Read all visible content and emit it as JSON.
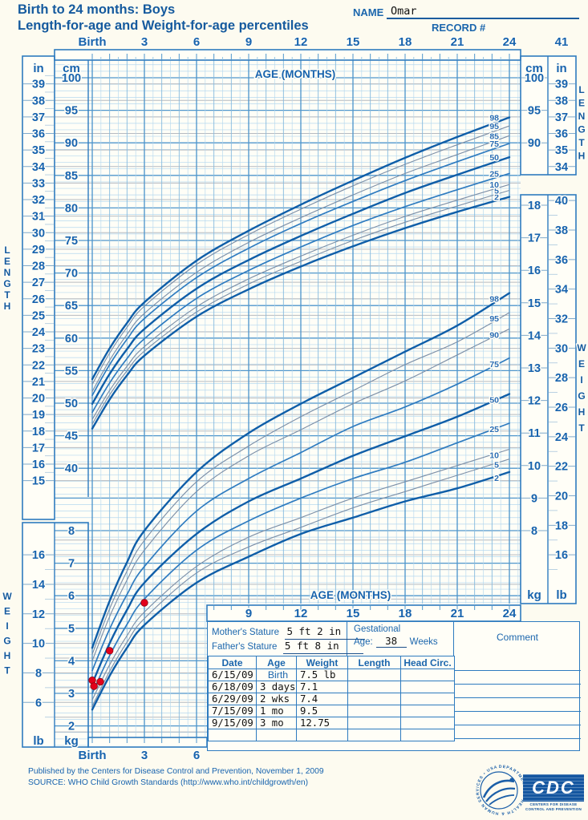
{
  "header": {
    "title_line1": "Birth to 24 months: Boys",
    "title_line2": "Length-for-age and Weight-for-age percentiles",
    "name_label": "NAME",
    "name_value": "Omar",
    "record_label": "RECORD #"
  },
  "side_labels": {
    "length": "LENGTH",
    "weight": "WEIGHT"
  },
  "units": {
    "inches": "in",
    "cm": "cm",
    "lb": "lb",
    "kg": "kg"
  },
  "colors": {
    "page_bg": "#fdfbf0",
    "plot_bg": "#fffef7",
    "grid_minor": "#b5d8ef",
    "grid_month": "#85bade",
    "grid_medium": "#4f96cc",
    "grid_gray": "#b6bac0",
    "box_border": "#2e7bbf",
    "label_blue": "#1763ae",
    "curve_thick": "#0f5ea8",
    "curve_medium": "#2f7cc0",
    "curve_thin": "#7d90a8",
    "pctl_label": "#2a6db5",
    "point_red": "#e3001b",
    "hand_black": "#111111"
  },
  "table": {
    "mothers_stature_label": "Mother's Stature",
    "mothers_stature_value": "5 ft 2 in",
    "fathers_stature_label": "Father's Stature",
    "fathers_stature_value": "5 ft 8 in",
    "gestational_label": "Gestational",
    "age_label": "Age:",
    "gestational_value": "38",
    "weeks_label": "Weeks",
    "comment_label": "Comment",
    "columns": [
      "Date",
      "Age",
      "Weight",
      "Length",
      "Head Circ."
    ],
    "rows": [
      {
        "date": "6/15/09",
        "age": "Birth",
        "weight": "7.5 lb",
        "length": "",
        "head_circ": ""
      },
      {
        "date": "6/18/09",
        "age": "3 days",
        "weight": "7.1",
        "length": "",
        "head_circ": ""
      },
      {
        "date": "6/29/09",
        "age": "2 wks",
        "weight": "7.4",
        "length": "",
        "head_circ": ""
      },
      {
        "date": "7/15/09",
        "age": "1 mo",
        "weight": "9.5",
        "length": "",
        "head_circ": ""
      },
      {
        "date": "9/15/09",
        "age": "3 mo",
        "weight": "12.75",
        "length": "",
        "head_circ": ""
      },
      {
        "date": "",
        "age": "",
        "weight": "",
        "length": "",
        "head_circ": ""
      }
    ]
  },
  "footer": {
    "line1": "Published by the Centers for Disease Control and Prevention, November 1, 2009",
    "line2": "SOURCE:  WHO Child Growth Standards (http://www.who.int/childgrowth/en)",
    "hhs_ring_text": "DEPARTMENT OF HEALTH & HUMAN SERVICES • USA",
    "cdc_text": "CDC",
    "cdc_caption1": "CENTERS FOR DISEASE",
    "cdc_caption2": "CONTROL AND PREVENTION"
  },
  "chart_data": {
    "type": "line",
    "title": "Length-for-age and Weight-for-age percentiles, boys, birth to 24 months",
    "age_axis_label": "AGE (MONTHS)",
    "x_months": [
      0,
      3,
      6,
      9,
      12,
      15,
      18,
      21,
      24
    ],
    "top_axis_labels": [
      "Birth",
      "3",
      "6",
      "9",
      "12",
      "15",
      "18",
      "21",
      "24"
    ],
    "top_axis_extra_label": "41",
    "bottom_axis_months": [
      9,
      12,
      15,
      18,
      21,
      24
    ],
    "bottom_axis_labels": [
      "9",
      "12",
      "15",
      "18",
      "21",
      "24"
    ],
    "bottom_left_axis_months": [
      0,
      3,
      6
    ],
    "bottom_left_axis_labels": [
      "Birth",
      "3",
      "6"
    ],
    "grid": true,
    "ylim_length_cm": [
      40,
      100
    ],
    "ylim_weight_kg": [
      2,
      18
    ],
    "length_for_age": {
      "unit": "cm",
      "left_cm_ticks": [
        100,
        95,
        90,
        85,
        80,
        75,
        70,
        65,
        60,
        55,
        50,
        45,
        40
      ],
      "left_in_ticks": [
        39,
        38,
        37,
        36,
        35,
        34,
        33,
        32,
        31,
        30,
        29,
        28,
        27,
        26,
        25,
        24,
        23,
        22,
        21,
        20,
        19,
        18,
        17,
        16,
        15
      ],
      "right_cm_ticks": [
        100,
        95,
        90
      ],
      "right_in_ticks": [
        39,
        38,
        37,
        36,
        35,
        34
      ],
      "series": [
        {
          "percentile": "2",
          "values": [
            46.1,
            57.3,
            63.3,
            67.5,
            71.0,
            74.1,
            76.9,
            79.4,
            81.7
          ]
        },
        {
          "percentile": "5",
          "values": [
            46.8,
            58.0,
            64.0,
            68.3,
            71.8,
            75.0,
            77.8,
            80.3,
            82.7
          ]
        },
        {
          "percentile": "10",
          "values": [
            47.5,
            58.7,
            64.8,
            69.1,
            72.6,
            75.8,
            78.7,
            81.2,
            83.6
          ]
        },
        {
          "percentile": "25",
          "values": [
            48.6,
            59.9,
            66.1,
            70.4,
            74.0,
            77.3,
            80.2,
            82.8,
            85.3
          ]
        },
        {
          "percentile": "50",
          "values": [
            49.9,
            61.4,
            67.6,
            72.0,
            75.7,
            79.1,
            82.3,
            85.1,
            87.8
          ]
        },
        {
          "percentile": "75",
          "values": [
            51.2,
            63.0,
            69.3,
            73.8,
            77.6,
            81.0,
            84.2,
            87.1,
            89.9
          ]
        },
        {
          "percentile": "85",
          "values": [
            51.8,
            63.8,
            70.1,
            74.7,
            78.5,
            82.0,
            85.3,
            88.2,
            91.1
          ]
        },
        {
          "percentile": "95",
          "values": [
            52.9,
            64.9,
            71.3,
            75.9,
            79.8,
            83.4,
            86.7,
            89.7,
            92.6
          ]
        },
        {
          "percentile": "98",
          "values": [
            53.7,
            65.5,
            71.9,
            76.5,
            80.5,
            84.2,
            87.7,
            90.9,
            93.9
          ]
        }
      ]
    },
    "weight_for_age": {
      "unit": "kg",
      "left_lb_ticks": [
        16,
        14,
        12,
        10,
        8,
        6
      ],
      "left_kg_ticks": [
        8,
        7,
        6,
        5,
        4,
        3,
        2
      ],
      "right_kg_ticks": [
        18,
        17,
        16,
        15,
        14,
        13,
        12,
        11,
        10,
        9,
        8
      ],
      "right_lb_ticks": [
        40,
        38,
        36,
        34,
        32,
        30,
        28,
        26,
        24,
        22,
        20,
        18,
        16
      ],
      "series": [
        {
          "percentile": "2",
          "values": [
            2.5,
            5.1,
            6.4,
            7.2,
            7.9,
            8.4,
            8.9,
            9.3,
            9.8
          ]
        },
        {
          "percentile": "5",
          "values": [
            2.6,
            5.3,
            6.7,
            7.5,
            8.1,
            8.7,
            9.2,
            9.7,
            10.2
          ]
        },
        {
          "percentile": "10",
          "values": [
            2.8,
            5.5,
            6.9,
            7.8,
            8.4,
            9.0,
            9.5,
            10.0,
            10.5
          ]
        },
        {
          "percentile": "25",
          "values": [
            3.0,
            5.9,
            7.4,
            8.3,
            9.0,
            9.6,
            10.1,
            10.7,
            11.3
          ]
        },
        {
          "percentile": "50",
          "values": [
            3.3,
            6.4,
            7.9,
            8.9,
            9.6,
            10.3,
            10.9,
            11.5,
            12.2
          ]
        },
        {
          "percentile": "75",
          "values": [
            3.7,
            6.9,
            8.6,
            9.6,
            10.4,
            11.2,
            11.8,
            12.5,
            13.3
          ]
        },
        {
          "percentile": "90",
          "values": [
            4.0,
            7.4,
            9.2,
            10.3,
            11.1,
            11.9,
            12.6,
            13.4,
            14.2
          ]
        },
        {
          "percentile": "95",
          "values": [
            4.2,
            7.7,
            9.5,
            10.6,
            11.5,
            12.3,
            13.1,
            13.8,
            14.7
          ]
        },
        {
          "percentile": "98",
          "values": [
            4.4,
            8.0,
            9.8,
            11.0,
            11.9,
            12.7,
            13.5,
            14.3,
            15.3
          ]
        }
      ]
    },
    "patient_series": {
      "label": "plotted weight measurements",
      "ages_months": [
        0,
        0.1,
        0.46,
        1,
        3
      ],
      "weights_lb": [
        7.5,
        7.1,
        7.4,
        9.5,
        12.75
      ]
    }
  }
}
